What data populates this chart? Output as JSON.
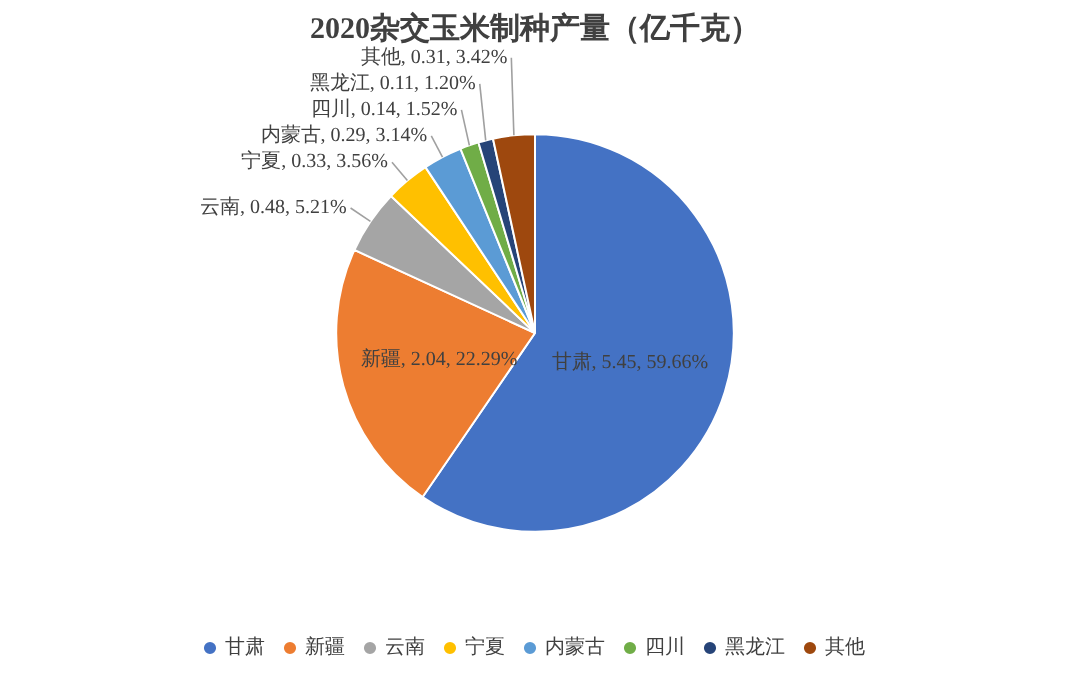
{
  "chart_data": {
    "type": "pie",
    "title": "2020杂交玉米制种产量（亿千克）",
    "categories": [
      "甘肃",
      "新疆",
      "云南",
      "宁夏",
      "内蒙古",
      "四川",
      "黑龙江",
      "其他"
    ],
    "values": [
      5.45,
      2.04,
      0.48,
      0.33,
      0.29,
      0.14,
      0.11,
      0.31
    ],
    "colors": [
      "#4472c4",
      "#ed7d31",
      "#a5a5a5",
      "#ffc000",
      "#5b9bd5",
      "#70ad47",
      "#264478",
      "#9e480e"
    ],
    "value_labels": [
      "甘肃, 5.45, 59.66%",
      "新疆, 2.04, 22.29%",
      "云南, 0.48, 5.21%",
      "宁夏, 0.33, 3.56%",
      "内蒙古, 0.29, 3.14%",
      "四川, 0.14, 1.52%",
      "黑龙江, 0.11, 1.20%",
      "其他, 0.31, 3.42%"
    ],
    "legend": "bottom"
  }
}
